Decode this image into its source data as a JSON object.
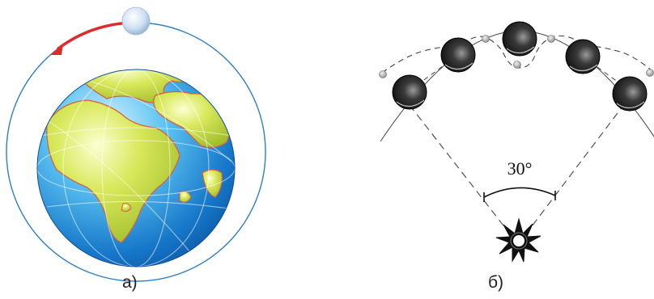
{
  "panel_a": {
    "caption": "а)",
    "earth_icon": "earth-globe-icon",
    "moon_icon": "moon-icon",
    "colors": {
      "orbit": "#2e7fc6",
      "direction_arrow": "#e02a2a",
      "ocean": "#1f8ed8",
      "land": "#c8dc46",
      "coast": "#d9603a"
    }
  },
  "panel_b": {
    "caption": "б)",
    "angle_label": "30°",
    "sun_icon": "sun-starburst-icon",
    "planet_count": 5,
    "colors": {
      "planet": "#111111",
      "lines": "#444444"
    }
  }
}
